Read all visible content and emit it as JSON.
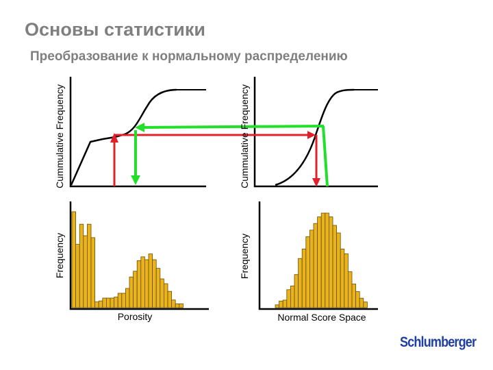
{
  "title": "Основы статистики",
  "subtitle": "Преобразование к нормальному распределению",
  "diagram": {
    "cdf_left_ylabel": "Cummulative Frequency",
    "cdf_right_ylabel": "Cummulative Frequency",
    "hist_left_ylabel": "Frequency",
    "hist_left_xlabel": "Porosity",
    "hist_right_ylabel": "Frequency",
    "hist_right_xlabel": "Normal Score Space"
  },
  "colors": {
    "bar_fill": "#e8b31c",
    "bar_stroke": "#6b4e00",
    "arrow_red": "#e0202a",
    "arrow_green": "#22e02a",
    "axis": "#000000",
    "logo": "#1f3f9f"
  },
  "chart_data": [
    {
      "type": "bar",
      "xlabel": "Porosity",
      "ylabel": "Frequency",
      "values": [
        100,
        66,
        87,
        75,
        87,
        73,
        6,
        7,
        10,
        10,
        10,
        11,
        15,
        15,
        20,
        32,
        38,
        49,
        53,
        50,
        56,
        50,
        41,
        30,
        25,
        17,
        8,
        4,
        4
      ]
    },
    {
      "type": "bar",
      "xlabel": "Normal Score Space",
      "ylabel": "Frequency",
      "values": [
        3,
        7,
        8,
        19,
        23,
        35,
        52,
        62,
        75,
        82,
        89,
        96,
        100,
        100,
        96,
        87,
        79,
        62,
        57,
        38,
        25,
        17,
        10,
        6
      ]
    }
  ],
  "logo_text": "Schlumberger"
}
